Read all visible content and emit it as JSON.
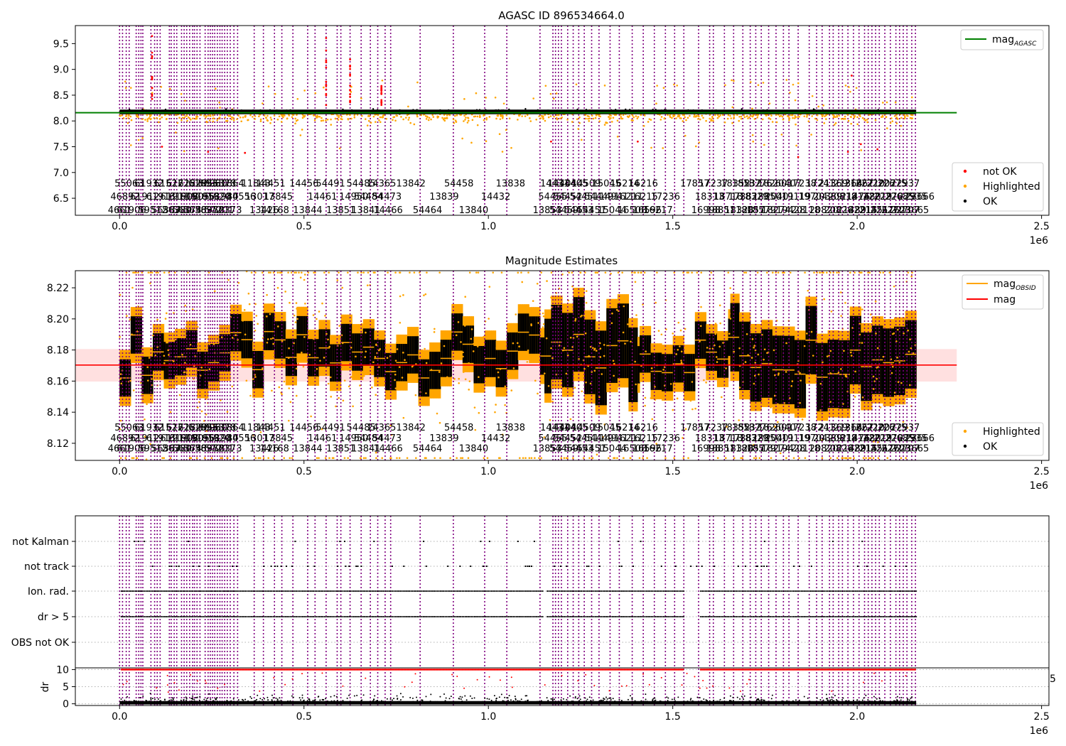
{
  "chart_data": [
    {
      "type": "scatter",
      "title": "AGASC ID 896534664.0",
      "xlim": [
        -120000,
        2520000
      ],
      "ylim": [
        6.17,
        9.85
      ],
      "x_ticks": [
        0,
        0.5,
        1.0,
        1.5,
        2.0,
        2.5
      ],
      "x_tick_labels": [
        "0.0",
        "0.5",
        "1.0",
        "1.5",
        "2.0",
        "2.5"
      ],
      "x_offset_label": "1e6",
      "y_ticks": [
        6.5,
        7.0,
        7.5,
        8.0,
        8.5,
        9.0,
        9.5
      ],
      "y_tick_labels": [
        "6.5",
        "7.0",
        "7.5",
        "8.0",
        "8.5",
        "9.0",
        "9.5"
      ],
      "lines": [
        {
          "name": "mag",
          "subscript": "AGASC",
          "color": "#008000",
          "y": 8.16,
          "x": [
            -120000,
            2270000
          ]
        }
      ],
      "scatter_series": [
        {
          "name": "not OK",
          "color": "#ff0000"
        },
        {
          "name": "Highlighted",
          "color": "#ffa500"
        },
        {
          "name": "OK",
          "color": "#000000"
        }
      ],
      "legend_top": "top-right",
      "legend_bottom": "bottom-right",
      "ok_band": [
        8.13,
        8.22
      ],
      "annotation_row_y": [
        6.8,
        6.54,
        6.28
      ]
    },
    {
      "type": "scatter",
      "title": "Magnitude Estimates",
      "xlim": [
        -120000,
        2520000
      ],
      "ylim": [
        8.109,
        8.231
      ],
      "x_ticks": [
        0,
        0.5,
        1.0,
        1.5,
        2.0,
        2.5
      ],
      "x_tick_labels": [
        "0.0",
        "0.5",
        "1.0",
        "1.5",
        "2.0",
        "2.5"
      ],
      "x_offset_label": "1e6",
      "y_ticks": [
        8.12,
        8.14,
        8.16,
        8.18,
        8.2,
        8.22
      ],
      "y_tick_labels": [
        "8.12",
        "8.14",
        "8.16",
        "8.18",
        "8.20",
        "8.22"
      ],
      "lines": [
        {
          "name": "mag",
          "subscript": "OBSID",
          "color": "#ffa500"
        },
        {
          "name": "mag",
          "color": "#ff0000",
          "y": 8.1703
        }
      ],
      "mag_band": [
        8.1597,
        8.1806
      ],
      "scatter_series": [
        {
          "name": "Highlighted",
          "color": "#ffa500"
        },
        {
          "name": "OK",
          "color": "#000000"
        }
      ],
      "legend_top": "top-right",
      "legend_bottom": "bottom-right",
      "annotation_row_y": [
        8.1305,
        8.1237,
        8.117
      ]
    },
    {
      "type": "scatter",
      "title": "",
      "xlim": [
        -120000,
        2520000
      ],
      "x_ticks": [
        0,
        0.5,
        1.0,
        1.5,
        2.0,
        2.5
      ],
      "x_tick_labels": [
        "0.0",
        "0.5",
        "1.0",
        "1.5",
        "2.0",
        "2.5"
      ],
      "x_offset_label": "1e6",
      "flag_rows": [
        "not Kalman",
        "not track",
        "Ion. rad.",
        "dr > 5",
        "OBS not OK"
      ],
      "dr": {
        "ylabel": "dr",
        "ylim": [
          -0.5,
          10.5
        ],
        "y_ticks": [
          0,
          5,
          10
        ],
        "y_tick_labels": [
          "0",
          "5",
          "10"
        ],
        "right_label": "5",
        "threshold": 10
      }
    }
  ],
  "obsid_boundaries": [
    0,
    8000,
    18000,
    26000,
    45000,
    52000,
    58000,
    63000,
    85000,
    95000,
    102000,
    110000,
    135000,
    140000,
    148000,
    155000,
    168000,
    175000,
    182000,
    190000,
    198000,
    203000,
    210000,
    218000,
    232000,
    240000,
    246000,
    252000,
    258000,
    265000,
    272000,
    278000,
    285000,
    292000,
    300000,
    310000,
    320000,
    365000,
    390000,
    420000,
    440000,
    470000,
    510000,
    530000,
    560000,
    590000,
    600000,
    625000,
    655000,
    680000,
    700000,
    720000,
    735000,
    815000,
    905000,
    990000,
    1050000,
    1140000,
    1175000,
    1182000,
    1190000,
    1198000,
    1215000,
    1230000,
    1245000,
    1260000,
    1280000,
    1300000,
    1330000,
    1355000,
    1390000,
    1420000,
    1450000,
    1480000,
    1505000,
    1530000,
    1570000,
    1600000,
    1610000,
    1640000,
    1665000,
    1690000,
    1710000,
    1725000,
    1740000,
    1760000,
    1780000,
    1800000,
    1815000,
    1840000,
    1870000,
    1890000,
    1905000,
    1925000,
    1935000,
    1950000,
    1960000,
    1975000,
    1990000,
    2005000,
    2020000,
    2030000,
    2040000,
    2050000,
    2060000,
    2075000,
    2090000,
    2105000,
    2115000,
    2125000,
    2135000,
    2148000,
    2158000
  ],
  "obsid_labels": [
    {
      "x": 0,
      "row": 2,
      "text": "4661"
    },
    {
      "x": 15000,
      "row": 1,
      "text": "46892"
    },
    {
      "x": 26000,
      "row": 0,
      "text": "55063"
    },
    {
      "x": 32000,
      "row": 2,
      "text": "61906"
    },
    {
      "x": 68000,
      "row": 1,
      "text": "61912"
    },
    {
      "x": 80000,
      "row": 0,
      "text": "61932"
    },
    {
      "x": 90000,
      "row": 2,
      "text": "59512"
    },
    {
      "x": 112000,
      "row": 1,
      "text": "61913"
    },
    {
      "x": 126000,
      "row": 2,
      "text": "56387"
    },
    {
      "x": 133000,
      "row": 0,
      "text": "61522"
    },
    {
      "x": 150000,
      "row": 1,
      "text": "61911"
    },
    {
      "x": 156000,
      "row": 2,
      "text": "56380"
    },
    {
      "x": 166000,
      "row": 0,
      "text": "61728"
    },
    {
      "x": 174000,
      "row": 1,
      "text": "61908"
    },
    {
      "x": 183000,
      "row": 2,
      "text": "56374"
    },
    {
      "x": 198000,
      "row": 0,
      "text": "61529"
    },
    {
      "x": 204000,
      "row": 1,
      "text": "61905"
    },
    {
      "x": 212000,
      "row": 2,
      "text": "56389"
    },
    {
      "x": 226000,
      "row": 0,
      "text": "61693"
    },
    {
      "x": 232000,
      "row": 1,
      "text": "61958"
    },
    {
      "x": 244000,
      "row": 2,
      "text": "56372"
    },
    {
      "x": 252000,
      "row": 0,
      "text": "60930"
    },
    {
      "x": 262000,
      "row": 1,
      "text": "61920"
    },
    {
      "x": 270000,
      "row": 2,
      "text": "57201"
    },
    {
      "x": 276000,
      "row": 0,
      "text": "56378"
    },
    {
      "x": 282000,
      "row": 1,
      "text": "61984"
    },
    {
      "x": 292000,
      "row": 2,
      "text": "56373"
    },
    {
      "x": 298000,
      "row": 0,
      "text": "61864"
    },
    {
      "x": 330000,
      "row": 1,
      "text": "40556"
    },
    {
      "x": 370000,
      "row": 0,
      "text": "11843"
    },
    {
      "x": 380000,
      "row": 1,
      "text": "13017"
    },
    {
      "x": 392000,
      "row": 2,
      "text": "13426"
    },
    {
      "x": 410000,
      "row": 0,
      "text": "14451"
    },
    {
      "x": 420000,
      "row": 2,
      "text": "14168"
    },
    {
      "x": 430000,
      "row": 1,
      "text": "13845"
    },
    {
      "x": 500000,
      "row": 0,
      "text": "14456"
    },
    {
      "x": 510000,
      "row": 2,
      "text": "13844"
    },
    {
      "x": 550000,
      "row": 1,
      "text": "14461"
    },
    {
      "x": 572000,
      "row": 0,
      "text": "54491"
    },
    {
      "x": 600000,
      "row": 2,
      "text": "13851"
    },
    {
      "x": 635000,
      "row": 1,
      "text": "14950"
    },
    {
      "x": 655000,
      "row": 0,
      "text": "54485"
    },
    {
      "x": 668000,
      "row": 2,
      "text": "13841"
    },
    {
      "x": 675000,
      "row": 1,
      "text": "54484"
    },
    {
      "x": 710000,
      "row": 0,
      "text": "14365"
    },
    {
      "x": 725000,
      "row": 1,
      "text": "54473"
    },
    {
      "x": 728000,
      "row": 2,
      "text": "14466"
    },
    {
      "x": 790000,
      "row": 0,
      "text": "13842"
    },
    {
      "x": 835000,
      "row": 2,
      "text": "54464"
    },
    {
      "x": 880000,
      "row": 1,
      "text": "13839"
    },
    {
      "x": 920000,
      "row": 0,
      "text": "54458"
    },
    {
      "x": 960000,
      "row": 2,
      "text": "13840"
    },
    {
      "x": 1020000,
      "row": 1,
      "text": "14432"
    },
    {
      "x": 1060000,
      "row": 0,
      "text": "13838"
    },
    {
      "x": 1160000,
      "row": 2,
      "text": "13853"
    },
    {
      "x": 1175000,
      "row": 1,
      "text": "54455"
    },
    {
      "x": 1180000,
      "row": 0,
      "text": "14431"
    },
    {
      "x": 1200000,
      "row": 0,
      "text": "14404"
    },
    {
      "x": 1205000,
      "row": 2,
      "text": "54459"
    },
    {
      "x": 1215000,
      "row": 1,
      "text": "54452"
    },
    {
      "x": 1230000,
      "row": 0,
      "text": "14405"
    },
    {
      "x": 1245000,
      "row": 2,
      "text": "54453"
    },
    {
      "x": 1260000,
      "row": 1,
      "text": "54451"
    },
    {
      "x": 1265000,
      "row": 0,
      "text": "14509"
    },
    {
      "x": 1280000,
      "row": 2,
      "text": "54451"
    },
    {
      "x": 1300000,
      "row": 1,
      "text": "54449"
    },
    {
      "x": 1320000,
      "row": 0,
      "text": "15045"
    },
    {
      "x": 1335000,
      "row": 2,
      "text": "15044"
    },
    {
      "x": 1340000,
      "row": 1,
      "text": "14941"
    },
    {
      "x": 1370000,
      "row": 0,
      "text": "16214"
    },
    {
      "x": 1380000,
      "row": 1,
      "text": "16211"
    },
    {
      "x": 1390000,
      "row": 2,
      "text": "16508"
    },
    {
      "x": 1420000,
      "row": 1,
      "text": "16215"
    },
    {
      "x": 1420000,
      "row": 0,
      "text": "16216"
    },
    {
      "x": 1430000,
      "row": 2,
      "text": "16596"
    },
    {
      "x": 1460000,
      "row": 2,
      "text": "16217"
    },
    {
      "x": 1480000,
      "row": 1,
      "text": "17236"
    },
    {
      "x": 1560000,
      "row": 0,
      "text": "17857"
    },
    {
      "x": 1590000,
      "row": 2,
      "text": "16998"
    },
    {
      "x": 1600000,
      "row": 1,
      "text": "18313"
    },
    {
      "x": 1610000,
      "row": 0,
      "text": "17237"
    },
    {
      "x": 1630000,
      "row": 2,
      "text": "18851"
    },
    {
      "x": 1650000,
      "row": 1,
      "text": "18718"
    },
    {
      "x": 1670000,
      "row": 0,
      "text": "18352"
    },
    {
      "x": 1680000,
      "row": 2,
      "text": "18328"
    },
    {
      "x": 1690000,
      "row": 1,
      "text": "17382"
    },
    {
      "x": 1700000,
      "row": 0,
      "text": "18532"
    },
    {
      "x": 1710000,
      "row": 2,
      "text": "18057"
    },
    {
      "x": 1720000,
      "row": 1,
      "text": "18329"
    },
    {
      "x": 1730000,
      "row": 0,
      "text": "18776"
    },
    {
      "x": 1740000,
      "row": 2,
      "text": "18579"
    },
    {
      "x": 1755000,
      "row": 1,
      "text": "18850"
    },
    {
      "x": 1770000,
      "row": 0,
      "text": "18260"
    },
    {
      "x": 1780000,
      "row": 2,
      "text": "18274"
    },
    {
      "x": 1790000,
      "row": 1,
      "text": "20401"
    },
    {
      "x": 1810000,
      "row": 0,
      "text": "20407"
    },
    {
      "x": 1820000,
      "row": 2,
      "text": "19428"
    },
    {
      "x": 1835000,
      "row": 1,
      "text": "19119"
    },
    {
      "x": 1850000,
      "row": 0,
      "text": "17238"
    },
    {
      "x": 1860000,
      "row": 2,
      "text": "20118"
    },
    {
      "x": 1880000,
      "row": 1,
      "text": "19704"
    },
    {
      "x": 1900000,
      "row": 0,
      "text": "17241"
    },
    {
      "x": 1910000,
      "row": 2,
      "text": "20820"
    },
    {
      "x": 1920000,
      "row": 1,
      "text": "20389"
    },
    {
      "x": 1935000,
      "row": 0,
      "text": "21369"
    },
    {
      "x": 1950000,
      "row": 2,
      "text": "20826"
    },
    {
      "x": 1960000,
      "row": 1,
      "text": "20818"
    },
    {
      "x": 1975000,
      "row": 0,
      "text": "21364"
    },
    {
      "x": 1985000,
      "row": 2,
      "text": "21489"
    },
    {
      "x": 1995000,
      "row": 1,
      "text": "21476"
    },
    {
      "x": 2005000,
      "row": 0,
      "text": "21667"
    },
    {
      "x": 2015000,
      "row": 2,
      "text": "22215"
    },
    {
      "x": 2025000,
      "row": 1,
      "text": "21480"
    },
    {
      "x": 2035000,
      "row": 0,
      "text": "22210"
    },
    {
      "x": 2045000,
      "row": 2,
      "text": "21451"
    },
    {
      "x": 2055000,
      "row": 1,
      "text": "22219"
    },
    {
      "x": 2065000,
      "row": 0,
      "text": "22207"
    },
    {
      "x": 2075000,
      "row": 2,
      "text": "22676"
    },
    {
      "x": 2085000,
      "row": 1,
      "text": "22270"
    },
    {
      "x": 2095000,
      "row": 0,
      "text": "22675"
    },
    {
      "x": 2105000,
      "row": 2,
      "text": "22703"
    },
    {
      "x": 2115000,
      "row": 1,
      "text": "22685"
    },
    {
      "x": 2130000,
      "row": 0,
      "text": "22937"
    },
    {
      "x": 2130000,
      "row": 2,
      "text": "22707"
    },
    {
      "x": 2150000,
      "row": 1,
      "text": "22935"
    },
    {
      "x": 2155000,
      "row": 2,
      "text": "23665"
    },
    {
      "x": 2170000,
      "row": 1,
      "text": "23666"
    }
  ]
}
